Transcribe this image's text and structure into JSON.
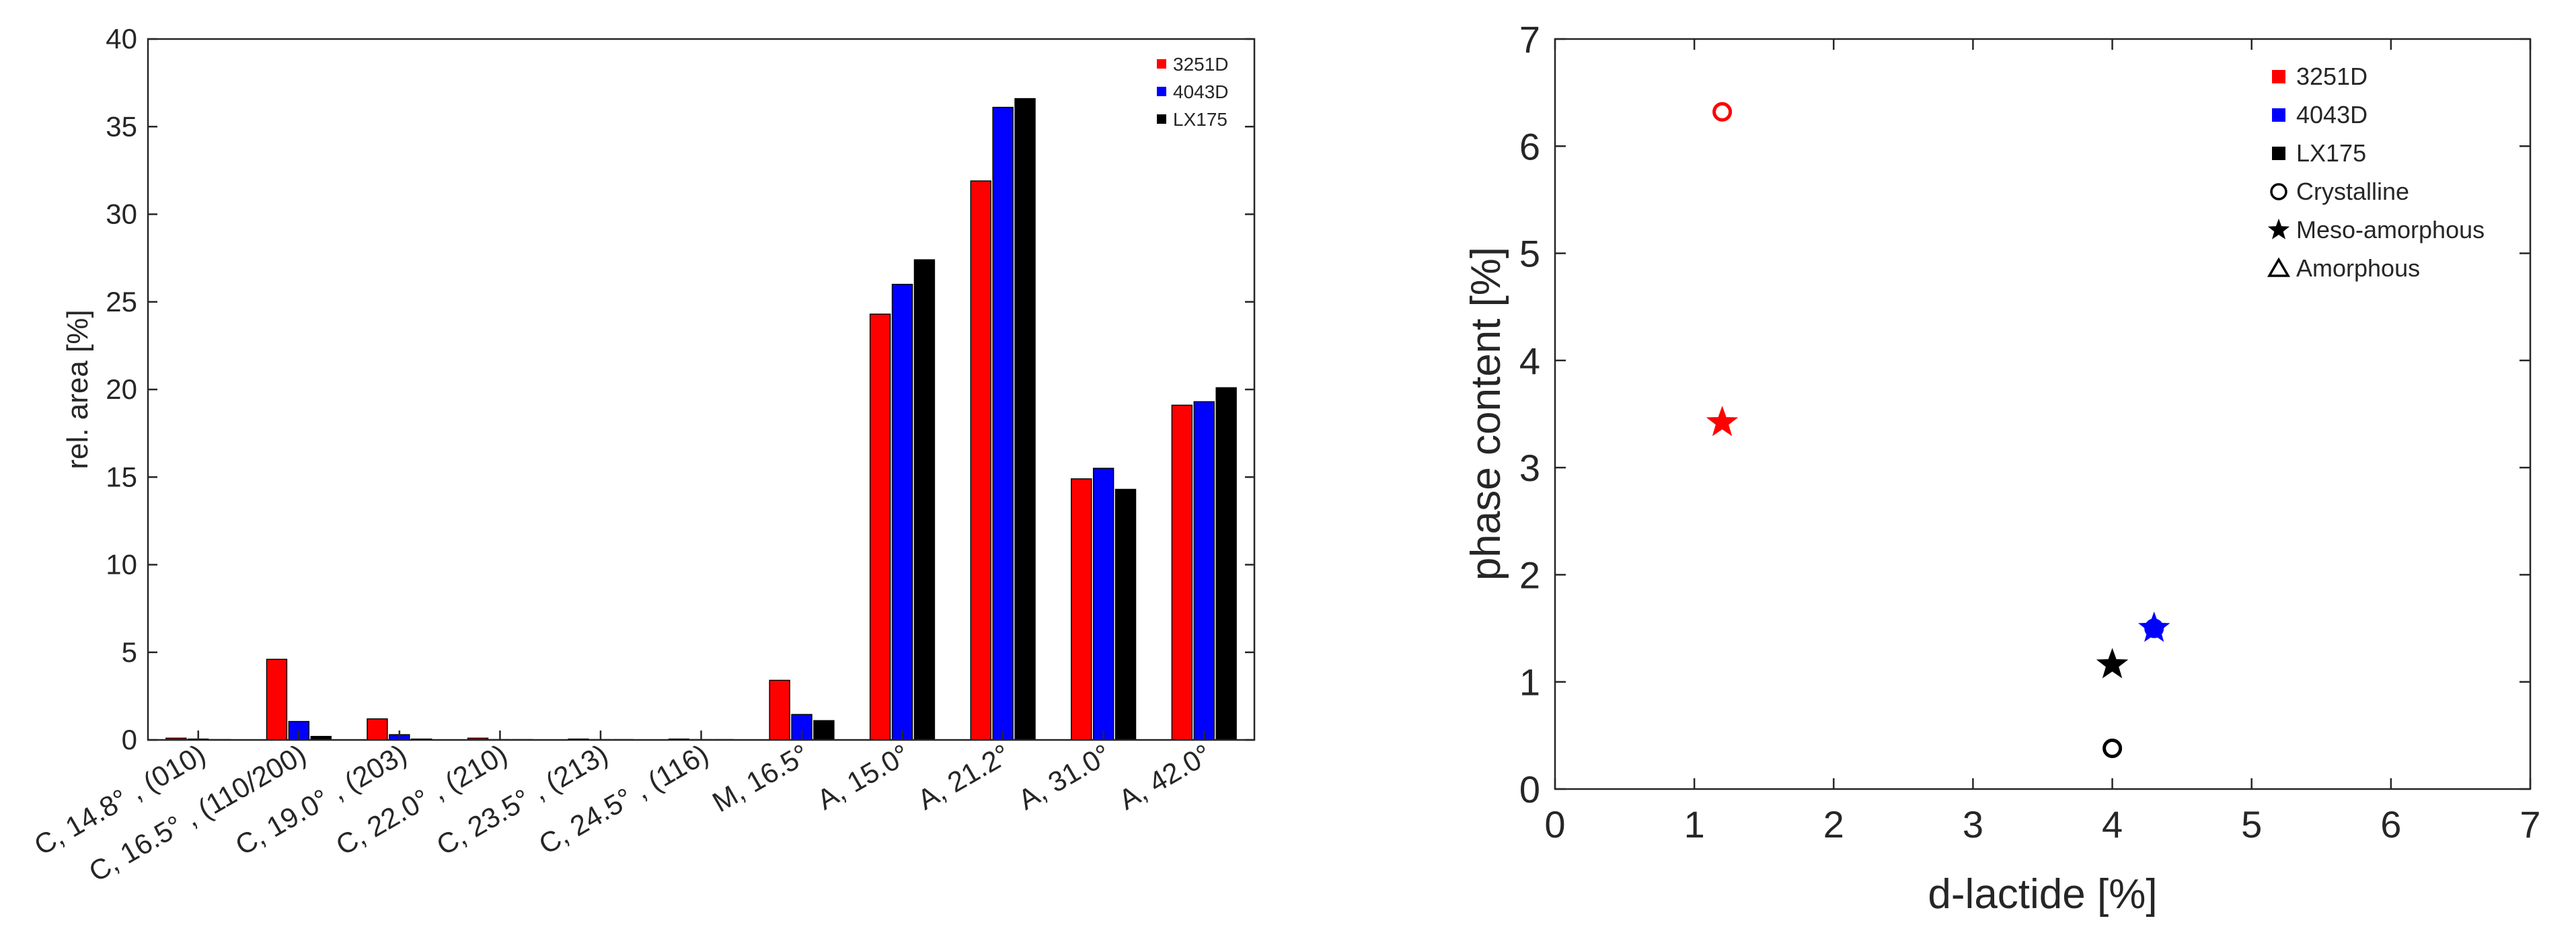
{
  "chart_data": [
    {
      "type": "bar",
      "title": "",
      "xlabel": "",
      "ylabel": "rel. area [%]",
      "ylim": [
        0,
        40
      ],
      "yticks": [
        0,
        5,
        10,
        15,
        20,
        25,
        30,
        35,
        40
      ],
      "grid": false,
      "legend_position": "top-right",
      "categories": [
        "C, 14.8° , (010)",
        "C, 16.5° , (110/200)",
        "C, 19.0° , (203)",
        "C, 22.0° , (210)",
        "C, 23.5° , (213)",
        "C, 24.5° , (116)",
        "M, 16.5°",
        "A, 15.0°",
        "A, 21.2°",
        "A, 31.0°",
        "A, 42.0°"
      ],
      "series": [
        {
          "name": "3251D",
          "color": "#ff0000",
          "values": [
            0.1,
            4.6,
            1.2,
            0.1,
            0.05,
            0.05,
            3.4,
            24.3,
            31.9,
            14.9,
            19.1
          ]
        },
        {
          "name": "4043D",
          "color": "#0000ff",
          "values": [
            0.05,
            1.05,
            0.3,
            0.02,
            0.02,
            0.02,
            1.45,
            26.0,
            36.1,
            15.5,
            19.3
          ]
        },
        {
          "name": "LX175",
          "color": "#000000",
          "values": [
            0.02,
            0.2,
            0.05,
            0.02,
            0.02,
            0.02,
            1.1,
            27.4,
            36.6,
            14.3,
            20.1
          ]
        }
      ]
    },
    {
      "type": "scatter",
      "title": "",
      "xlabel": "d-lactide [%]",
      "ylabel": "phase content [%]",
      "xlim": [
        0,
        7
      ],
      "ylim": [
        0,
        7
      ],
      "xticks": [
        0,
        1,
        2,
        3,
        4,
        5,
        6,
        7
      ],
      "yticks": [
        0,
        1,
        2,
        3,
        4,
        5,
        6,
        7
      ],
      "grid": false,
      "legend_position": "top-right",
      "legend": [
        {
          "label": "3251D",
          "marker": "square",
          "color": "#ff0000"
        },
        {
          "label": "4043D",
          "marker": "square",
          "color": "#0000ff"
        },
        {
          "label": "LX175",
          "marker": "square",
          "color": "#000000"
        },
        {
          "label": "Crystalline",
          "marker": "circle",
          "color": "#000000"
        },
        {
          "label": "Meso-amorphous",
          "marker": "star",
          "color": "#000000"
        },
        {
          "label": "Amorphous",
          "marker": "triangle",
          "color": "#000000"
        }
      ],
      "points": [
        {
          "series": "3251D",
          "phase": "Crystalline",
          "marker": "circle",
          "color": "#ff0000",
          "x": 1.2,
          "y": 6.32
        },
        {
          "series": "3251D",
          "phase": "Meso-amorphous",
          "marker": "star",
          "color": "#ff0000",
          "x": 1.2,
          "y": 3.42
        },
        {
          "series": "4043D",
          "phase": "Crystalline",
          "marker": "circle",
          "color": "#0000ff",
          "x": 4.3,
          "y": 1.5
        },
        {
          "series": "4043D",
          "phase": "Meso-amorphous",
          "marker": "star",
          "color": "#0000ff",
          "x": 4.3,
          "y": 1.5
        },
        {
          "series": "LX175",
          "phase": "Crystalline",
          "marker": "circle",
          "color": "#000000",
          "x": 4.0,
          "y": 0.38
        },
        {
          "series": "LX175",
          "phase": "Meso-amorphous",
          "marker": "star",
          "color": "#000000",
          "x": 4.0,
          "y": 1.16
        }
      ]
    }
  ]
}
